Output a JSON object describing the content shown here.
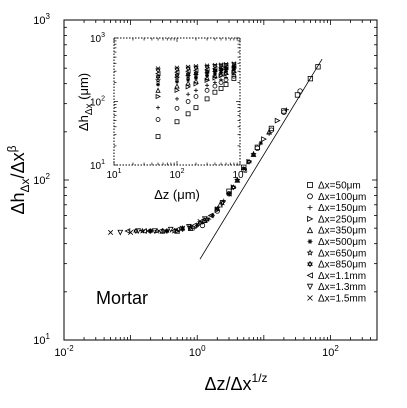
{
  "chart_data": [
    {
      "type": "scatter",
      "title": "",
      "xlabel": "Δz/Δx^{1/z}",
      "ylabel": "Δh_{Δx}/Δx^{β}",
      "xscale": "log",
      "yscale": "log",
      "xlim": [
        0.01,
        500
      ],
      "ylim": [
        10,
        1000
      ],
      "x_ticks": [
        {
          "base": "10",
          "exp": "-2"
        },
        {
          "base": "10",
          "exp": "0"
        },
        {
          "base": "10",
          "exp": "2"
        }
      ],
      "y_ticks": [
        {
          "base": "10",
          "exp": "1"
        },
        {
          "base": "10",
          "exp": "2"
        },
        {
          "base": "10",
          "exp": "3"
        }
      ],
      "annotation": "Mortar",
      "legend_position": "right",
      "fit_line": {
        "x": [
          1.1,
          75
        ],
        "y": [
          32,
          570
        ]
      },
      "series": [
        {
          "name": "Δx=50μm",
          "marker": "square",
          "x": [
            3,
            5,
            8,
            13,
            20,
            32,
            50,
            65
          ],
          "y": [
            85,
            120,
            160,
            210,
            270,
            340,
            430,
            510
          ]
        },
        {
          "name": "Δx=100μm",
          "marker": "circle",
          "x": [
            1.2,
            2,
            3,
            5,
            8,
            13,
            20,
            35
          ],
          "y": [
            52,
            64,
            82,
            116,
            158,
            205,
            265,
            360
          ]
        },
        {
          "name": "Δx=150μm",
          "marker": "plus",
          "x": [
            0.9,
            1.5,
            2.5,
            4,
            7,
            12,
            22
          ],
          "y": [
            50,
            57,
            74,
            100,
            145,
            195,
            275
          ]
        },
        {
          "name": "Δx=250μm",
          "marker": "triangle-right",
          "x": [
            0.5,
            0.8,
            1.3,
            2,
            3.5,
            6,
            10,
            16
          ],
          "y": [
            48,
            50,
            55,
            65,
            90,
            130,
            180,
            235
          ]
        },
        {
          "name": "Δx=350μm",
          "marker": "triangle-up",
          "x": [
            0.3,
            0.5,
            0.8,
            1.3,
            2.2,
            4,
            7,
            12
          ],
          "y": [
            48,
            48,
            50,
            56,
            70,
            100,
            145,
            200
          ]
        },
        {
          "name": "Δx=500μm",
          "marker": "asterisk",
          "x": [
            0.2,
            0.35,
            0.6,
            1,
            1.7,
            3,
            5,
            9
          ],
          "y": [
            48,
            48,
            49,
            52,
            60,
            82,
            118,
            170
          ]
        },
        {
          "name": "Δx=650μm",
          "marker": "star",
          "x": [
            0.15,
            0.25,
            0.45,
            0.8,
            1.4,
            2.4,
            4,
            7
          ],
          "y": [
            48,
            48,
            48,
            51,
            57,
            72,
            100,
            145
          ]
        },
        {
          "name": "Δx=850μm",
          "marker": "hexagram",
          "x": [
            0.12,
            0.2,
            0.35,
            0.6,
            1.1,
            2,
            3.5,
            6
          ],
          "y": [
            48,
            48,
            48,
            50,
            54,
            66,
            90,
            130
          ]
        },
        {
          "name": "Δx=1.1mm",
          "marker": "triangle-left",
          "x": [
            0.09,
            0.16,
            0.28,
            0.5,
            0.9,
            1.6,
            3
          ],
          "y": [
            48,
            48,
            48,
            49,
            52,
            60,
            82
          ]
        },
        {
          "name": "Δx=1.3mm",
          "marker": "triangle-down",
          "x": [
            0.07,
            0.13,
            0.23,
            0.4,
            0.75,
            1.3,
            2.4
          ],
          "y": [
            47,
            48,
            48,
            49,
            51,
            57,
            72
          ]
        },
        {
          "name": "Δx=1.5mm",
          "marker": "x",
          "x": [
            0.05,
            0.1,
            0.18,
            0.33,
            0.6,
            1.1,
            2
          ],
          "y": [
            47,
            47,
            48,
            48,
            50,
            55,
            66
          ]
        }
      ]
    },
    {
      "type": "scatter",
      "title": "",
      "xlabel": "Δz (μm)",
      "ylabel": "Δh_{Δx} (μm)",
      "xscale": "log",
      "yscale": "log",
      "xlim": [
        10,
        1000
      ],
      "ylim": [
        10,
        1000
      ],
      "x_ticks": [
        {
          "base": "10",
          "exp": "1"
        },
        {
          "base": "10",
          "exp": "2"
        },
        {
          "base": "10",
          "exp": "3"
        }
      ],
      "y_ticks": [
        {
          "base": "10",
          "exp": "1"
        },
        {
          "base": "10",
          "exp": "2"
        },
        {
          "base": "10",
          "exp": "3"
        }
      ],
      "series": [
        {
          "marker": "square",
          "x": [
            50,
            100,
            150,
            200,
            300,
            400,
            500,
            600,
            800
          ],
          "y": [
            28,
            48,
            64,
            80,
            110,
            140,
            160,
            185,
            230
          ]
        },
        {
          "marker": "circle",
          "x": [
            50,
            100,
            150,
            200,
            300,
            400,
            500,
            600,
            800
          ],
          "y": [
            52,
            78,
            100,
            120,
            150,
            175,
            200,
            220,
            250
          ]
        },
        {
          "marker": "plus",
          "x": [
            50,
            100,
            150,
            200,
            300,
            400,
            500,
            600,
            800
          ],
          "y": [
            80,
            110,
            130,
            150,
            180,
            200,
            220,
            240,
            270
          ]
        },
        {
          "marker": "triangle-right",
          "x": [
            50,
            100,
            150,
            200,
            300,
            400,
            500,
            600,
            800
          ],
          "y": [
            120,
            150,
            170,
            190,
            215,
            235,
            255,
            270,
            290
          ]
        },
        {
          "marker": "triangle-up",
          "x": [
            50,
            100,
            150,
            200,
            300,
            400,
            500,
            600,
            800
          ],
          "y": [
            150,
            175,
            195,
            210,
            235,
            255,
            270,
            285,
            305
          ]
        },
        {
          "marker": "asterisk",
          "x": [
            50,
            100,
            150,
            200,
            300,
            400,
            500,
            600,
            800
          ],
          "y": [
            185,
            205,
            220,
            235,
            255,
            270,
            285,
            300,
            320
          ]
        },
        {
          "marker": "star",
          "x": [
            50,
            100,
            150,
            200,
            300,
            400,
            500,
            600,
            800
          ],
          "y": [
            215,
            235,
            250,
            260,
            275,
            290,
            305,
            315,
            335
          ]
        },
        {
          "marker": "hexagram",
          "x": [
            50,
            100,
            150,
            200,
            300,
            400,
            500,
            600,
            800
          ],
          "y": [
            245,
            260,
            270,
            280,
            295,
            310,
            320,
            330,
            345
          ]
        },
        {
          "marker": "triangle-left",
          "x": [
            50,
            100,
            150,
            200,
            300,
            400,
            500,
            600,
            800
          ],
          "y": [
            275,
            290,
            300,
            310,
            320,
            330,
            340,
            350,
            360
          ]
        },
        {
          "marker": "triangle-down",
          "x": [
            50,
            100,
            150,
            200,
            300,
            400,
            500,
            600,
            800
          ],
          "y": [
            305,
            315,
            325,
            335,
            345,
            355,
            360,
            368,
            378
          ]
        },
        {
          "marker": "x",
          "x": [
            50,
            100,
            150,
            200,
            300,
            400,
            500,
            600,
            800
          ],
          "y": [
            330,
            340,
            350,
            358,
            366,
            374,
            380,
            386,
            395
          ]
        }
      ]
    }
  ]
}
